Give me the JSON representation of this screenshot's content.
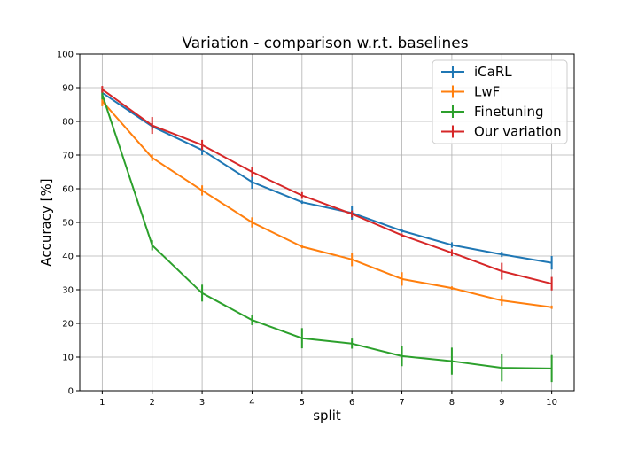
{
  "chart_data": {
    "type": "line",
    "title": "Variation - comparison w.r.t. baselines",
    "xlabel": "split",
    "ylabel": "Accuracy [%]",
    "x": [
      1,
      2,
      3,
      4,
      5,
      6,
      7,
      8,
      9,
      10
    ],
    "xlim": [
      0.55,
      10.45
    ],
    "ylim": [
      0,
      100
    ],
    "yticks": [
      0,
      10,
      20,
      30,
      40,
      50,
      60,
      70,
      80,
      90,
      100
    ],
    "grid": true,
    "legend_position": "top-right",
    "error_bars": true,
    "series": [
      {
        "name": "iCaRL",
        "color": "#1f77b4",
        "values": [
          88.5,
          78.5,
          71.5,
          62.0,
          56.0,
          52.8,
          47.5,
          43.3,
          40.5,
          38.0
        ],
        "errors": [
          1.0,
          1.0,
          1.5,
          2.0,
          0.5,
          2.0,
          0.5,
          0.8,
          0.8,
          2.0
        ]
      },
      {
        "name": "LwF",
        "color": "#ff7f0e",
        "values": [
          86.0,
          69.2,
          59.5,
          50.0,
          42.8,
          39.0,
          33.2,
          30.5,
          26.8,
          24.8
        ],
        "errors": [
          1.5,
          1.0,
          1.5,
          1.5,
          0.5,
          2.0,
          2.0,
          0.5,
          1.5,
          0.5
        ]
      },
      {
        "name": "Finetuning",
        "color": "#2ca02c",
        "values": [
          88.0,
          43.2,
          29.0,
          21.0,
          15.6,
          14.0,
          10.3,
          8.8,
          6.8,
          6.6
        ],
        "errors": [
          1.5,
          1.5,
          2.5,
          1.5,
          3.0,
          1.5,
          3.0,
          4.0,
          4.0,
          4.0
        ]
      },
      {
        "name": "Our variation",
        "color": "#d62728",
        "values": [
          89.5,
          78.8,
          73.0,
          65.0,
          58.0,
          52.5,
          46.2,
          41.0,
          35.5,
          31.8
        ],
        "errors": [
          1.0,
          2.5,
          1.5,
          1.5,
          1.0,
          1.0,
          0.5,
          1.0,
          2.5,
          2.0
        ]
      }
    ]
  }
}
